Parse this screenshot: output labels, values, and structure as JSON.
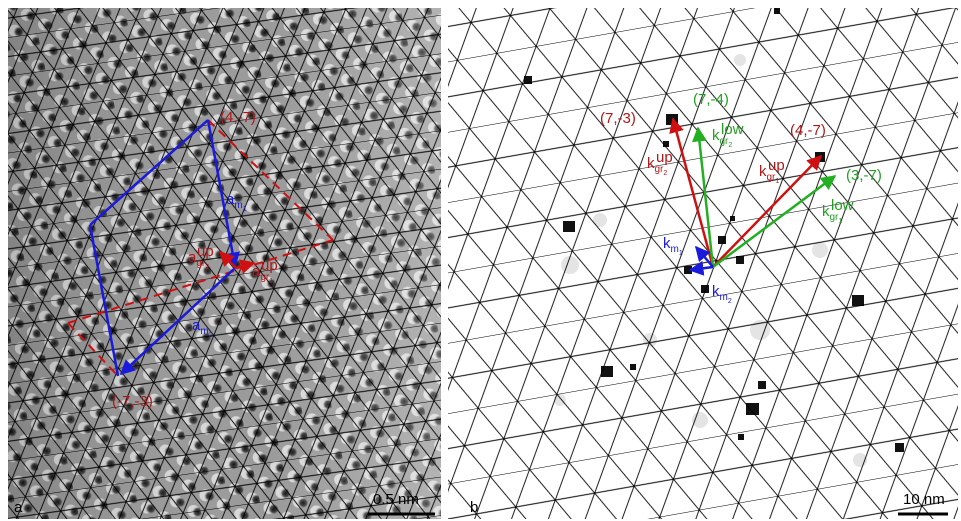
{
  "panel_a": {
    "letter": "a",
    "scale_bar": "0.5 nm",
    "points": [
      "(4,-7)",
      "(-7,-3)"
    ],
    "vectors": [
      {
        "symbol": "a",
        "sub": "m",
        "index": "1"
      },
      {
        "symbol": "a",
        "sup": "up",
        "sub": "gr",
        "index": "2"
      },
      {
        "symbol": "a",
        "sup": "up",
        "sub": "gr",
        "index": "1"
      },
      {
        "symbol": "a",
        "sub": "m",
        "index": "2"
      }
    ]
  },
  "panel_b": {
    "letter": "b",
    "scale_bar": "10 nm",
    "points": [
      "(7,-3)",
      "(7,-4)",
      "(4,-7)",
      "(3,-7)"
    ],
    "vectors": [
      {
        "symbol": "k",
        "sup": "up",
        "sub": "gr",
        "index": "2"
      },
      {
        "symbol": "k",
        "sup": "low",
        "sub": "gr",
        "index": "2"
      },
      {
        "symbol": "k",
        "sup": "up",
        "sub": "gr",
        "index": "1"
      },
      {
        "symbol": "k",
        "sup": "low",
        "sub": "gr",
        "index": "1"
      },
      {
        "symbol": "k",
        "sub": "m",
        "index": "1"
      },
      {
        "symbol": "k",
        "sub": "m",
        "index": "2"
      }
    ]
  }
}
